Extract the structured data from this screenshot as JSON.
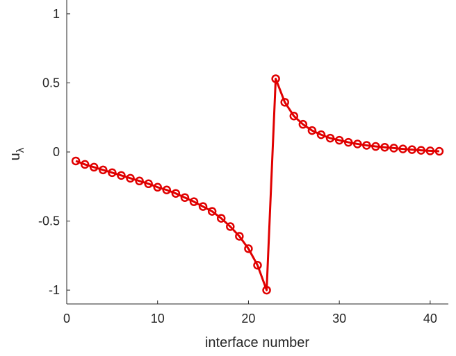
{
  "chart_data": {
    "type": "line",
    "xlabel": "interface number",
    "ylabel": "u",
    "ylabel_subscript": "λ",
    "xlim": [
      0,
      42
    ],
    "ylim": [
      -1.1,
      1.1
    ],
    "xticks": [
      0,
      10,
      20,
      30,
      40
    ],
    "xtick_labels": [
      "0",
      "10",
      "20",
      "30",
      "40"
    ],
    "yticks": [
      -1,
      -0.5,
      0,
      0.5,
      1
    ],
    "ytick_labels": [
      "-1",
      "-0.5",
      "0",
      "0.5",
      "1"
    ],
    "grid": false,
    "series": [
      {
        "color": "#e00000",
        "marker": "circle",
        "x": [
          1,
          2,
          3,
          4,
          5,
          6,
          7,
          8,
          9,
          10,
          11,
          12,
          13,
          14,
          15,
          16,
          17,
          18,
          19,
          20,
          21,
          22,
          23,
          24,
          25,
          26,
          27,
          28,
          29,
          30,
          31,
          32,
          33,
          34,
          35,
          36,
          37,
          38,
          39,
          40,
          41
        ],
        "y": [
          -0.065,
          -0.09,
          -0.11,
          -0.13,
          -0.15,
          -0.17,
          -0.19,
          -0.21,
          -0.23,
          -0.255,
          -0.275,
          -0.3,
          -0.33,
          -0.36,
          -0.395,
          -0.43,
          -0.48,
          -0.54,
          -0.61,
          -0.7,
          -0.82,
          -1.0,
          0.53,
          0.36,
          0.26,
          0.2,
          0.155,
          0.125,
          0.1,
          0.085,
          0.07,
          0.058,
          0.048,
          0.04,
          0.034,
          0.028,
          0.022,
          0.017,
          0.012,
          0.008,
          0.005
        ]
      }
    ]
  }
}
